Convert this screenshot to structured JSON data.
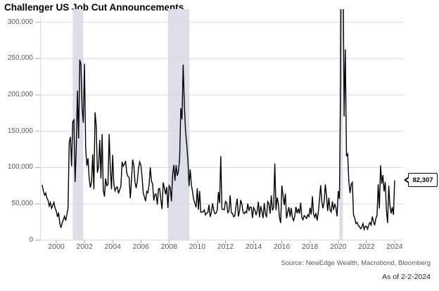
{
  "title": "Challenger US Job Cut Announcements",
  "source": "Source: NewEdge Wealth, Macrobond, Bloomberg",
  "as_of": "As of 2-2-2024",
  "callout": {
    "label": "82,307"
  },
  "colors": {
    "background": "#ffffff",
    "line": "#000000",
    "grid": "#d9d9d9",
    "tick": "#a6a6a6",
    "axis_label": "#595959",
    "recession_band": "#dcdfe9"
  },
  "chart_data": {
    "type": "line",
    "title": "Challenger US Job Cut Announcements",
    "xlabel": "",
    "ylabel": "",
    "frequency": "monthly",
    "x_start": {
      "year": 1999,
      "month": 1
    },
    "x_end": {
      "year": 2024,
      "month": 1
    },
    "ylim": [
      0,
      300000
    ],
    "grid": "horizontal",
    "legend": "none",
    "yticks": [
      0,
      50000,
      100000,
      150000,
      200000,
      250000,
      300000
    ],
    "ytick_labels": [
      "0",
      "50,000",
      "100,000",
      "150,000",
      "200,000",
      "250,000",
      "300,000"
    ],
    "xticks": [
      2000,
      2002,
      2004,
      2006,
      2008,
      2010,
      2012,
      2014,
      2016,
      2018,
      2020,
      2022,
      2024
    ],
    "recession_bands": [
      {
        "from": 2001.17,
        "to": 2001.92
      },
      {
        "from": 2007.92,
        "to": 2009.45
      },
      {
        "from": 2020.08,
        "to": 2020.33
      }
    ],
    "clip_note": "Apr-May 2020 values exceed the 300,000 axis maximum and are clipped at the plot top",
    "last_point": {
      "date": "2024-01",
      "value": 82307,
      "label": "82,307"
    },
    "values": [
      76000,
      68000,
      62000,
      65000,
      58000,
      55000,
      47000,
      52000,
      44000,
      48000,
      52000,
      44000,
      40000,
      32000,
      38000,
      23000,
      17000,
      24000,
      28000,
      33000,
      27000,
      35000,
      44000,
      133713,
      142208,
      101731,
      162867,
      165564,
      80140,
      124852,
      205975,
      140019,
      248332,
      242192,
      181412,
      161584,
      243000,
      128115,
      102315,
      112649,
      84978,
      72393,
      80966,
      118067,
      70057,
      176010,
      157508,
      93000,
      101000,
      138000,
      85000,
      146000,
      69000,
      60000,
      85000,
      75000,
      77000,
      146000,
      99000,
      70000,
      117556,
      77250,
      68034,
      72184,
      73368,
      64343,
      69572,
      74150,
      107863,
      101840,
      104530,
      109045,
      92351,
      87672,
      86396,
      57861,
      82283,
      110996,
      102971,
      79923,
      71836,
      81301,
      99279,
      107822,
      102946,
      87437,
      64975,
      59688,
      53716,
      67176,
      65278,
      76054,
      100315,
      81755,
      76773,
      54643,
      62975,
      63616,
      48997,
      70672,
      71115,
      55726,
      42897,
      79459,
      71739,
      63114,
      73140,
      44416,
      74986,
      72091,
      53579,
      90015,
      103522,
      81755,
      103312,
      88736,
      95094,
      112884,
      181671,
      166348,
      241749,
      186350,
      150411,
      132590,
      111182,
      74393,
      97373,
      76456,
      66404,
      55679,
      50349,
      45094,
      71482,
      42090,
      67611,
      38326,
      38810,
      39358,
      41676,
      34768,
      37151,
      37986,
      48711,
      32004,
      38519,
      50702,
      41528,
      36490,
      37135,
      41432,
      66414,
      51114,
      115730,
      42759,
      42474,
      41785,
      53486,
      51728,
      37880,
      40559,
      61887,
      37551,
      36855,
      32239,
      33816,
      47724,
      57081,
      32556,
      40430,
      55356,
      49255,
      38121,
      36398,
      39372,
      37701,
      50462,
      40289,
      45730,
      45314,
      30623,
      45107,
      41835,
      34399,
      40298,
      52961,
      31434,
      46887,
      40010,
      30477,
      51183,
      35940,
      32640,
      53041,
      50579,
      36594,
      61582,
      41034,
      44842,
      105696,
      41186,
      58877,
      50504,
      30953,
      23622,
      75114,
      61599,
      48207,
      64141,
      30157,
      38536,
      45346,
      32188,
      44324,
      30740,
      26936,
      33627,
      45934,
      36957,
      43310,
      36602,
      51692,
      31105,
      28307,
      33825,
      32346,
      29831,
      35038,
      32423,
      44653,
      35369,
      60357,
      36081,
      31517,
      37202,
      27122,
      38472,
      55285,
      75644,
      53073,
      43884,
      52988,
      76835,
      60587,
      40023,
      58577,
      41977,
      38845,
      53480,
      41557,
      50275,
      44569,
      32843,
      67735,
      56660,
      222288,
      671129,
      397016,
      170219,
      262649,
      115762,
      118804,
      80666,
      64797,
      77030,
      79552,
      34531,
      30603,
      22913,
      24586,
      20476,
      18942,
      15723,
      17895,
      22822,
      14875,
      19052,
      19064,
      15245,
      21387,
      24286,
      20712,
      32517,
      25810,
      20485,
      29989,
      33843,
      76835,
      43651,
      102943,
      77770,
      89703,
      66995,
      80089,
      40709,
      23697,
      75151,
      47457,
      36836,
      45510,
      34817,
      82307
    ]
  }
}
